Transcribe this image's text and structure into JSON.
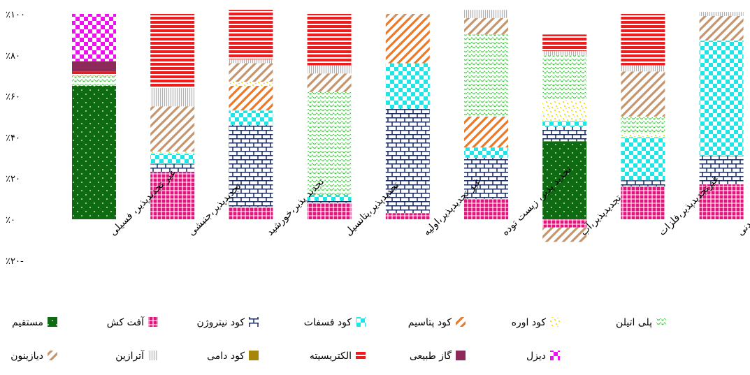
{
  "chart_data": {
    "type": "bar",
    "stacked": true,
    "title": "",
    "xlabel": "",
    "ylabel": "",
    "ylim": [
      -20,
      100
    ],
    "y_ticks": [
      -20,
      0,
      20,
      40,
      60,
      80,
      100
    ],
    "y_tick_labels": [
      "٪۲۰-",
      "٪۰",
      "٪۲۰",
      "٪۴۰",
      "٪۶۰",
      "٪۸۰",
      "٪۱۰۰"
    ],
    "grid": false,
    "legend_position": "bottom",
    "categories": [
      "غیر تجدیدپذیر، فسیلی",
      "تجدیدپذیر،جنبشی",
      "تجدید پذیر،خورشید",
      "تجدیدپذیر،پتانسیل",
      "غیر تجدیدپذیر،اولیه",
      "تجدید پذیر، زیست توده",
      "تجدیدپذیر،آب",
      "غیرتجدیدپذیر،فلزات",
      "غیرتجدیدپذیر،موادمعدنی"
    ],
    "series": [
      {
        "name": "مستقیم",
        "color": "#0e6b12",
        "pattern": "dots",
        "values": [
          65,
          0,
          0,
          0,
          0,
          0,
          38,
          0,
          0
        ]
      },
      {
        "name": "آفت کش",
        "color": "#e0157e",
        "pattern": "grid",
        "values": [
          0,
          23,
          6,
          8,
          3,
          10,
          -4,
          16,
          17
        ]
      },
      {
        "name": "کود نیتروژن",
        "color": "#1a2a5c",
        "pattern": "brick",
        "values": [
          0,
          4,
          40,
          1,
          51,
          20,
          7,
          3,
          14
        ]
      },
      {
        "name": "کود فسفات",
        "color": "#1ee6e6",
        "pattern": "checker",
        "values": [
          0,
          5,
          7,
          3,
          22,
          5,
          3,
          21,
          56
        ]
      },
      {
        "name": "کود پتاسیم",
        "color": "#f07820",
        "pattern": "diag",
        "values": [
          0,
          0,
          12,
          0,
          22,
          15,
          0,
          0,
          0
        ]
      },
      {
        "name": "کود اوره",
        "color": "#f2e60a",
        "pattern": "confetti",
        "values": [
          0,
          1,
          2,
          0,
          0,
          0,
          10,
          2,
          0
        ]
      },
      {
        "name": "پلی اتیلن",
        "color": "#3ec63e",
        "pattern": "zigzag",
        "values": [
          5,
          0,
          0,
          50,
          0,
          40,
          22,
          8,
          0
        ]
      },
      {
        "name": "دیازینون",
        "color": "#c8956a",
        "pattern": "diag",
        "values": [
          0,
          22,
          9,
          9,
          2,
          8,
          -7,
          22,
          12
        ]
      },
      {
        "name": "آترازین",
        "color": "#b0b0b0",
        "pattern": "vlines",
        "values": [
          0,
          9,
          2,
          4,
          0,
          4,
          2,
          3,
          2
        ]
      },
      {
        "name": "کود دامی",
        "color": "#a8860a",
        "pattern": "solid",
        "values": [
          0,
          0,
          0,
          0,
          0,
          0,
          0,
          0,
          0
        ]
      },
      {
        "name": "الکتریسیته",
        "color": "#ee1c1c",
        "pattern": "hstripes",
        "values": [
          2,
          36,
          24,
          25,
          0,
          0,
          8,
          25,
          0
        ]
      },
      {
        "name": "گاز طبیعی",
        "color": "#8c2a5a",
        "pattern": "solid",
        "values": [
          5,
          0,
          0,
          0,
          0,
          0,
          0,
          0,
          0
        ]
      },
      {
        "name": "دیزل",
        "color": "#ee10ee",
        "pattern": "checker",
        "values": [
          23,
          0,
          0,
          0,
          0,
          0,
          0,
          0,
          0
        ]
      }
    ]
  }
}
